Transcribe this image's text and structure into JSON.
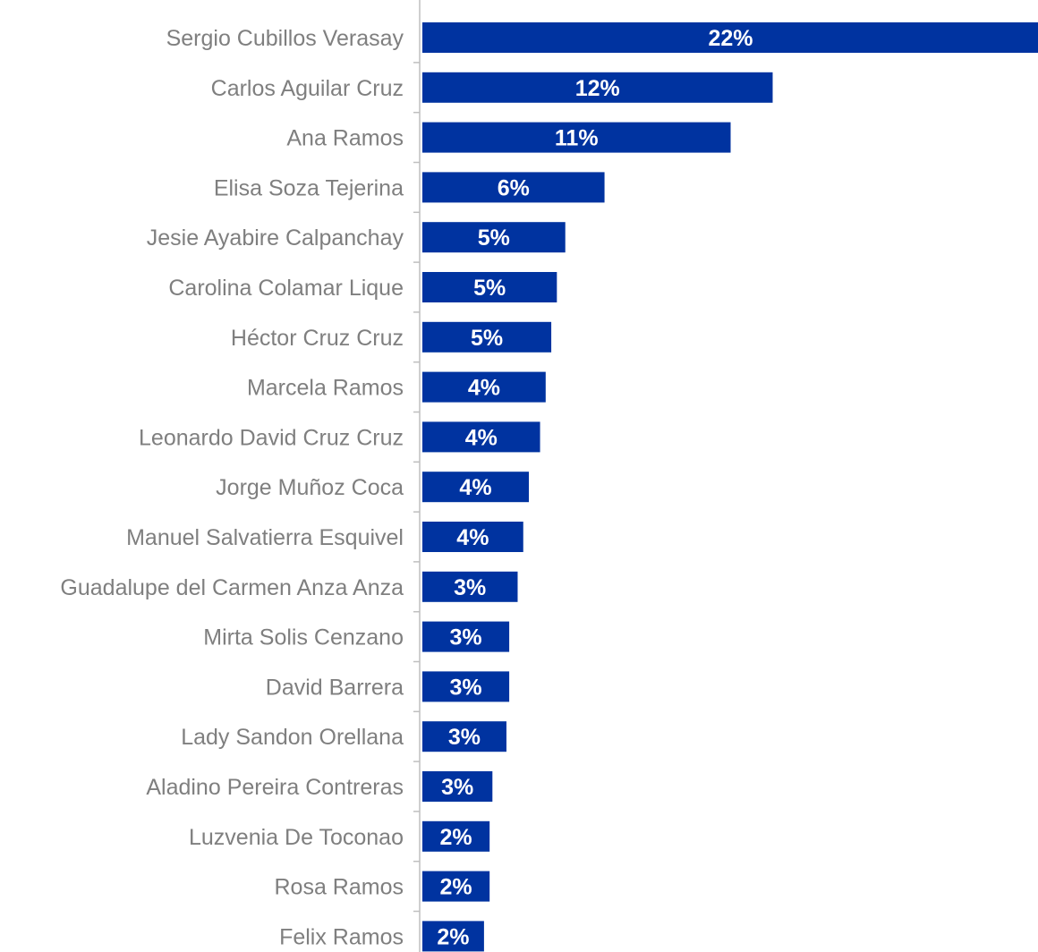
{
  "chart_data": {
    "type": "bar",
    "orientation": "horizontal",
    "bar_color": "#0033a0",
    "label_color": "#7f7f7f",
    "data_label_color": "#ffffff",
    "categories": [
      "Sergio Cubillos Verasay",
      "Carlos Aguilar Cruz",
      "Ana Ramos",
      "Elisa Soza Tejerina",
      "Jesie Ayabire Calpanchay",
      "Carolina Colamar Lique",
      "Héctor Cruz Cruz",
      "Marcela Ramos",
      "Leonardo David Cruz Cruz",
      "Jorge Muñoz Coca",
      "Manuel Salvatierra Esquivel",
      "Guadalupe del Carmen Anza Anza",
      "Mirta Solis Cenzano",
      "David Barrera",
      "Lady Sandon Orellana",
      "Aladino Pereira Contreras",
      "Luzvenia De Toconao",
      "Rosa Ramos",
      "Felix Ramos"
    ],
    "values": [
      22.0,
      12.5,
      11.0,
      6.5,
      5.1,
      4.8,
      4.6,
      4.4,
      4.2,
      3.8,
      3.6,
      3.4,
      3.1,
      3.1,
      3.0,
      2.5,
      2.4,
      2.4,
      2.2
    ],
    "data_labels": [
      "22%",
      "12%",
      "11%",
      "6%",
      "5%",
      "5%",
      "5%",
      "4%",
      "4%",
      "4%",
      "4%",
      "3%",
      "3%",
      "3%",
      "3%",
      "3%",
      "2%",
      "2%",
      "2%"
    ],
    "unit": "%",
    "xlim": [
      0,
      22
    ],
    "grid": false,
    "legend": false
  }
}
